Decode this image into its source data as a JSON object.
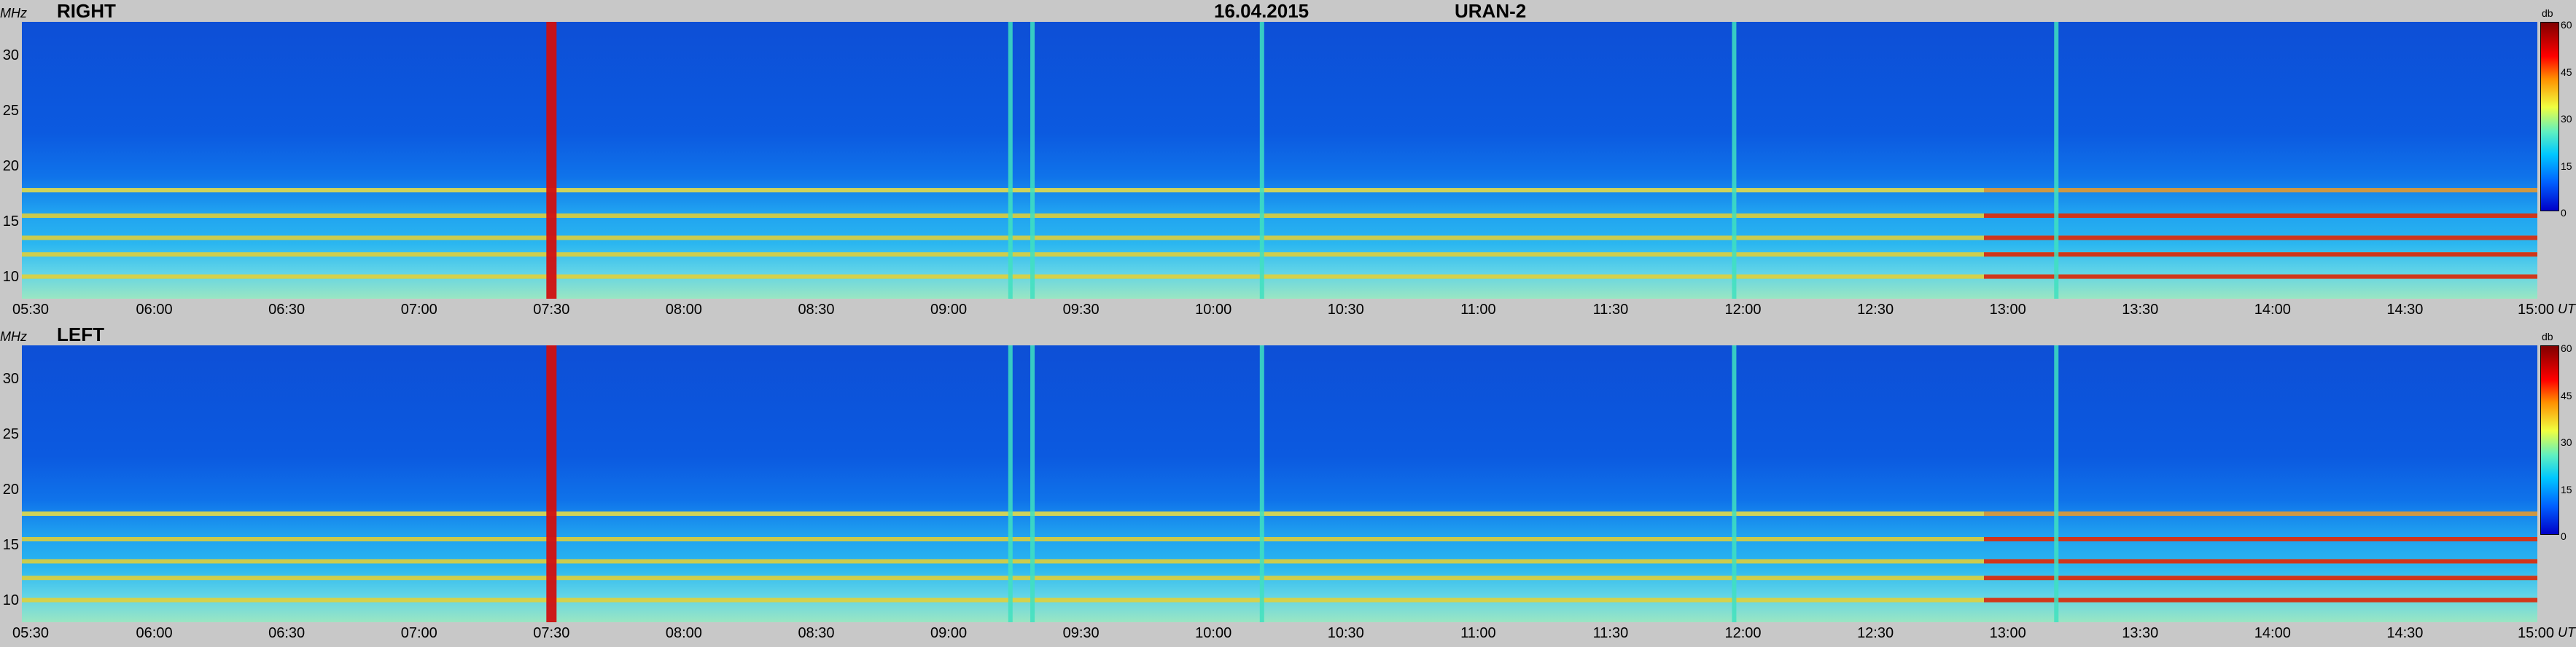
{
  "header": {
    "date": "16.04.2015",
    "instrument": "URAN-2"
  },
  "units": {
    "y": "MHz",
    "x": "UT",
    "colorbar": "db"
  },
  "panels": [
    {
      "channel": "RIGHT"
    },
    {
      "channel": "LEFT"
    }
  ],
  "colorbar_ticks": [
    "60",
    "45",
    "30",
    "15",
    "0"
  ],
  "chart_data": [
    {
      "type": "heatmap",
      "title": "RIGHT",
      "xlabel": "UT",
      "ylabel": "MHz",
      "x_ticks": [
        "05:30",
        "06:00",
        "06:30",
        "07:00",
        "07:30",
        "08:00",
        "08:30",
        "09:00",
        "09:30",
        "10:00",
        "10:30",
        "11:00",
        "11:30",
        "12:00",
        "12:30",
        "13:00",
        "13:30",
        "14:00",
        "14:30",
        "15:00"
      ],
      "y_ticks": [
        "30",
        "25",
        "20",
        "15",
        "10"
      ],
      "xlim": [
        "05:30",
        "15:00"
      ],
      "ylim": [
        8,
        33
      ],
      "colorbar_range_db": [
        0,
        60
      ],
      "strong_bands_mhz": [
        17.8,
        15.5,
        13.5,
        12,
        10
      ],
      "strong_bursts_ut": [
        "07:30",
        "09:14",
        "09:19",
        "10:11",
        "11:58",
        "13:11"
      ]
    },
    {
      "type": "heatmap",
      "title": "LEFT",
      "xlabel": "UT",
      "ylabel": "MHz",
      "x_ticks": [
        "05:30",
        "06:00",
        "06:30",
        "07:00",
        "07:30",
        "08:00",
        "08:30",
        "09:00",
        "09:30",
        "10:00",
        "10:30",
        "11:00",
        "11:30",
        "12:00",
        "12:30",
        "13:00",
        "13:30",
        "14:00",
        "14:30",
        "15:00"
      ],
      "y_ticks": [
        "30",
        "25",
        "20",
        "15",
        "10"
      ],
      "xlim": [
        "05:30",
        "15:00"
      ],
      "ylim": [
        8,
        33
      ],
      "colorbar_range_db": [
        0,
        60
      ],
      "strong_bands_mhz": [
        17.8,
        15.5,
        13.5,
        12,
        10
      ],
      "strong_bursts_ut": [
        "07:30",
        "09:14",
        "09:19",
        "10:11",
        "11:58",
        "13:11"
      ]
    }
  ],
  "colors": {
    "background": "#c8c8c8",
    "low": "#0d4fd6",
    "mid": "#2ab6f0",
    "band": "#f0e040",
    "hot": "#d01010"
  }
}
